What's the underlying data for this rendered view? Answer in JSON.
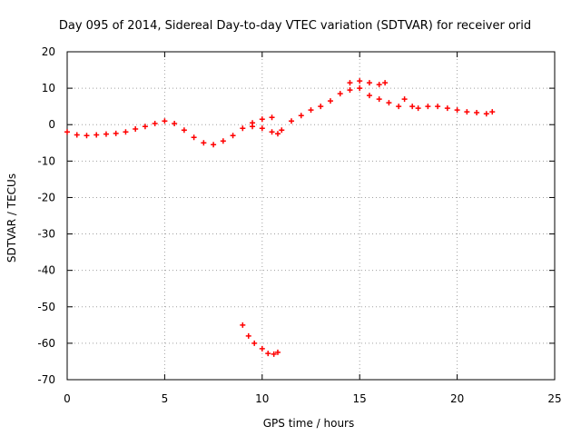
{
  "chart_data": {
    "type": "scatter",
    "title": "Day 095 of 2014, Sidereal Day-to-day VTEC variation (SDTVAR) for receiver orid",
    "xlabel": "GPS time / hours",
    "ylabel": "SDTVAR / TECUs",
    "xlim": [
      0,
      25
    ],
    "ylim": [
      -70,
      20
    ],
    "xticks": [
      0,
      5,
      10,
      15,
      20,
      25
    ],
    "yticks": [
      20,
      10,
      0,
      -10,
      -20,
      -30,
      -40,
      -50,
      -60,
      -70
    ],
    "grid": true,
    "marker": "+",
    "series": [
      {
        "name": "SDTVAR",
        "color": "#ff0000",
        "points": [
          [
            0.0,
            -2.0
          ],
          [
            0.5,
            -2.8
          ],
          [
            1.0,
            -3.0
          ],
          [
            1.5,
            -2.8
          ],
          [
            2.0,
            -2.6
          ],
          [
            2.5,
            -2.4
          ],
          [
            3.0,
            -2.0
          ],
          [
            3.5,
            -1.2
          ],
          [
            4.0,
            -0.5
          ],
          [
            4.5,
            0.3
          ],
          [
            5.0,
            1.0
          ],
          [
            5.5,
            0.3
          ],
          [
            6.0,
            -1.5
          ],
          [
            6.5,
            -3.5
          ],
          [
            7.0,
            -5.0
          ],
          [
            7.5,
            -5.5
          ],
          [
            8.0,
            -4.5
          ],
          [
            8.5,
            -3.0
          ],
          [
            9.0,
            -1.0
          ],
          [
            9.5,
            0.5
          ],
          [
            10.0,
            1.5
          ],
          [
            10.5,
            2.0
          ],
          [
            9.5,
            -0.5
          ],
          [
            10.0,
            -1.0
          ],
          [
            10.5,
            -2.0
          ],
          [
            10.8,
            -2.5
          ],
          [
            11.0,
            -1.5
          ],
          [
            11.5,
            1.0
          ],
          [
            12.0,
            2.5
          ],
          [
            12.5,
            4.0
          ],
          [
            13.0,
            5.0
          ],
          [
            13.5,
            6.5
          ],
          [
            14.0,
            8.5
          ],
          [
            14.5,
            11.5
          ],
          [
            15.0,
            12.0
          ],
          [
            15.5,
            11.5
          ],
          [
            16.0,
            11.0
          ],
          [
            16.3,
            11.5
          ],
          [
            14.5,
            9.5
          ],
          [
            15.0,
            10.0
          ],
          [
            15.5,
            8.0
          ],
          [
            16.0,
            7.0
          ],
          [
            16.5,
            6.0
          ],
          [
            17.0,
            5.0
          ],
          [
            17.3,
            7.0
          ],
          [
            17.7,
            5.0
          ],
          [
            18.0,
            4.5
          ],
          [
            18.5,
            5.0
          ],
          [
            19.0,
            5.0
          ],
          [
            19.5,
            4.5
          ],
          [
            20.0,
            4.0
          ],
          [
            20.5,
            3.5
          ],
          [
            21.0,
            3.3
          ],
          [
            21.5,
            3.0
          ],
          [
            21.8,
            3.5
          ],
          [
            9.0,
            -55.0
          ],
          [
            9.3,
            -58.0
          ],
          [
            9.6,
            -60.0
          ],
          [
            10.0,
            -61.5
          ],
          [
            10.3,
            -62.8
          ],
          [
            10.6,
            -63.0
          ],
          [
            10.8,
            -62.5
          ]
        ]
      }
    ]
  }
}
